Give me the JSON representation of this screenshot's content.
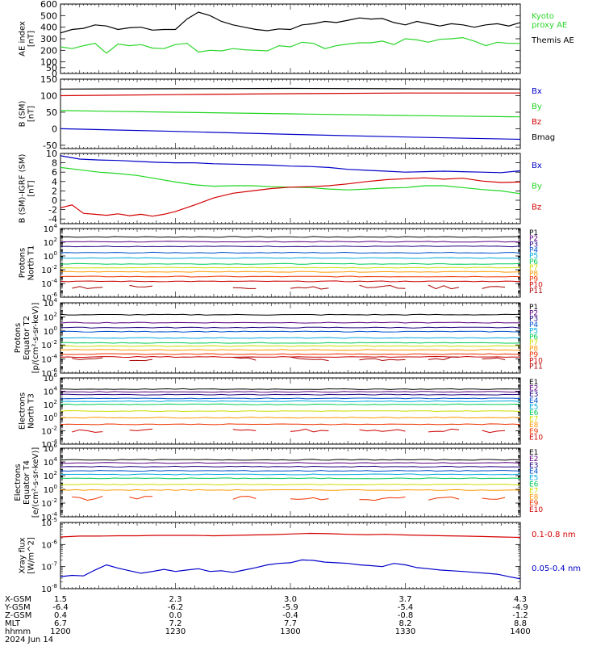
{
  "title": "",
  "colors": {
    "black": "#000000",
    "red": "#d40000",
    "green": "#1fd61f",
    "blue": "#0000c8",
    "ae_kyoto": "#2bd62b",
    "ae_themis": "#000000",
    "xray_long": "#d40000",
    "xray_short": "#0000c8"
  },
  "footer": {
    "rows": [
      {
        "label": "X-GSM",
        "values": [
          "1.5",
          "2.3",
          "3.0",
          "3.7",
          "4.3"
        ]
      },
      {
        "label": "Y-GSM",
        "values": [
          "-6.4",
          "-6.2",
          "-5.9",
          "-5.4",
          "-4.9"
        ]
      },
      {
        "label": "Z-GSM",
        "values": [
          "0.4",
          "0.0",
          "-0.4",
          "-0.8",
          "-1.2"
        ]
      },
      {
        "label": "MLT",
        "values": [
          "6.7",
          "7.2",
          "7.7",
          "8.2",
          "8.8"
        ]
      },
      {
        "label": "hhmm",
        "values": [
          "1200",
          "1230",
          "1300",
          "1330",
          "1400"
        ]
      }
    ],
    "date": "2024 Jun 14"
  },
  "chart_data": [
    {
      "type": "line",
      "ylabel": [
        "AE index",
        "[nT]"
      ],
      "ylim": [
        0,
        600
      ],
      "yticks": [
        "0",
        "50",
        "100",
        "200",
        "300",
        "400",
        "500",
        "600"
      ],
      "ytick_values": [
        0,
        50,
        100,
        200,
        300,
        400,
        500,
        600
      ],
      "legend": [
        {
          "text": [
            "Kyoto",
            "proxy AE"
          ],
          "color": "#2bd62b"
        },
        {
          "text": [
            "Themis AE"
          ],
          "color": "#000000"
        }
      ],
      "series": [
        {
          "name": "Kyoto proxy AE",
          "color": "#2bd62b",
          "x": [
            1200,
            1203,
            1206,
            1209,
            1212,
            1215,
            1218,
            1221,
            1224,
            1227,
            1230,
            1233,
            1236,
            1239,
            1242,
            1245,
            1248,
            1251,
            1254,
            1257,
            1300,
            1303,
            1306,
            1309,
            1312,
            1315,
            1318,
            1321,
            1324,
            1327,
            1330,
            1333,
            1336,
            1339,
            1342,
            1345,
            1348,
            1351,
            1354,
            1357,
            1400
          ],
          "y": [
            230,
            215,
            240,
            260,
            175,
            255,
            240,
            250,
            220,
            215,
            250,
            260,
            185,
            200,
            195,
            215,
            205,
            200,
            195,
            240,
            230,
            270,
            260,
            215,
            240,
            255,
            265,
            265,
            280,
            250,
            300,
            290,
            270,
            295,
            300,
            310,
            280,
            240,
            270,
            260,
            260
          ]
        },
        {
          "name": "Themis AE",
          "color": "#000000",
          "x": [
            1200,
            1203,
            1206,
            1209,
            1212,
            1215,
            1218,
            1221,
            1224,
            1227,
            1230,
            1233,
            1236,
            1239,
            1242,
            1245,
            1248,
            1251,
            1254,
            1257,
            1300,
            1303,
            1306,
            1309,
            1312,
            1315,
            1318,
            1321,
            1324,
            1327,
            1330,
            1333,
            1336,
            1339,
            1342,
            1345,
            1348,
            1351,
            1354,
            1357,
            1400
          ],
          "y": [
            350,
            380,
            390,
            420,
            410,
            380,
            395,
            400,
            375,
            380,
            380,
            470,
            530,
            500,
            450,
            420,
            400,
            380,
            370,
            385,
            380,
            420,
            430,
            450,
            440,
            460,
            480,
            470,
            475,
            440,
            420,
            450,
            430,
            410,
            430,
            420,
            400,
            420,
            430,
            410,
            440
          ]
        }
      ]
    },
    {
      "type": "line",
      "ylabel": [
        "B (SM)",
        "[nT]"
      ],
      "ylim": [
        -60,
        150
      ],
      "yticks": [
        "-50",
        "0",
        "50",
        "100",
        "150"
      ],
      "ytick_values": [
        -50,
        0,
        50,
        100,
        150
      ],
      "legend": [
        {
          "text": [
            "Bx"
          ],
          "color": "#0000c8"
        },
        {
          "text": [
            "By"
          ],
          "color": "#1fd61f"
        },
        {
          "text": [
            "Bz"
          ],
          "color": "#d40000"
        },
        {
          "text": [
            "Bmag"
          ],
          "color": "#000000"
        }
      ],
      "series": [
        {
          "name": "Bmag",
          "color": "#000000",
          "x": [
            1200,
            1230,
            1300,
            1330,
            1400
          ],
          "y": [
            120,
            121,
            122,
            121,
            120
          ]
        },
        {
          "name": "Bz",
          "color": "#d40000",
          "x": [
            1200,
            1230,
            1300,
            1330,
            1400
          ],
          "y": [
            100,
            103,
            106,
            108,
            108
          ]
        },
        {
          "name": "By",
          "color": "#1fd61f",
          "x": [
            1200,
            1230,
            1300,
            1330,
            1400
          ],
          "y": [
            55,
            50,
            45,
            40,
            36
          ]
        },
        {
          "name": "Bx",
          "color": "#0000c8",
          "x": [
            1200,
            1230,
            1300,
            1330,
            1400
          ],
          "y": [
            0,
            -8,
            -17,
            -25,
            -32
          ]
        }
      ]
    },
    {
      "type": "line",
      "ylabel": [
        "B (SM)-IGRF (SM)",
        "[nT]"
      ],
      "ylim": [
        -5,
        10
      ],
      "yticks": [
        "-4",
        "-2",
        "0",
        "2",
        "4",
        "6",
        "8",
        "10"
      ],
      "ytick_values": [
        -4,
        -2,
        0,
        2,
        4,
        6,
        8,
        10
      ],
      "legend": [
        {
          "text": [
            "Bx"
          ],
          "color": "#0000c8"
        },
        {
          "text": [
            "By"
          ],
          "color": "#1fd61f"
        },
        {
          "text": [
            "Bz"
          ],
          "color": "#d40000"
        }
      ],
      "series": [
        {
          "name": "Bx",
          "color": "#0000c8",
          "x": [
            1200,
            1205,
            1210,
            1215,
            1220,
            1225,
            1230,
            1235,
            1240,
            1245,
            1250,
            1255,
            1300,
            1305,
            1310,
            1315,
            1320,
            1325,
            1330,
            1335,
            1340,
            1345,
            1350,
            1355,
            1400
          ],
          "y": [
            9.5,
            8.8,
            8.6,
            8.5,
            8.3,
            8.1,
            8.0,
            8.0,
            7.8,
            7.7,
            7.6,
            7.5,
            7.3,
            7.2,
            7.0,
            6.6,
            6.4,
            6.2,
            6.0,
            6.1,
            6.2,
            6.1,
            6.0,
            5.9,
            6.3
          ]
        },
        {
          "name": "By",
          "color": "#1fd61f",
          "x": [
            1200,
            1205,
            1210,
            1215,
            1220,
            1225,
            1230,
            1235,
            1240,
            1245,
            1250,
            1255,
            1300,
            1305,
            1310,
            1315,
            1320,
            1325,
            1330,
            1335,
            1340,
            1345,
            1350,
            1355,
            1400
          ],
          "y": [
            7.0,
            6.5,
            6.0,
            5.7,
            5.3,
            4.6,
            3.9,
            3.3,
            3.0,
            3.1,
            3.1,
            2.9,
            2.8,
            2.7,
            2.4,
            2.2,
            2.4,
            2.6,
            2.7,
            3.1,
            3.1,
            2.7,
            2.3,
            2.0,
            1.4
          ]
        },
        {
          "name": "Bz",
          "color": "#d40000",
          "x": [
            1200,
            1203,
            1206,
            1209,
            1212,
            1215,
            1218,
            1221,
            1224,
            1227,
            1230,
            1235,
            1240,
            1245,
            1250,
            1255,
            1300,
            1305,
            1310,
            1315,
            1320,
            1325,
            1330,
            1335,
            1340,
            1345,
            1350,
            1355,
            1400
          ],
          "y": [
            -1.6,
            -1.0,
            -2.8,
            -3.0,
            -3.2,
            -2.9,
            -3.3,
            -3.0,
            -3.4,
            -3.0,
            -2.4,
            -1.0,
            0.5,
            1.5,
            2.0,
            2.5,
            2.8,
            2.9,
            3.1,
            3.5,
            4.0,
            4.4,
            4.6,
            4.8,
            4.5,
            4.7,
            4.1,
            3.8,
            3.9
          ]
        }
      ]
    },
    {
      "type": "line",
      "log": true,
      "ylabel": [
        "Protons",
        "North T1"
      ],
      "ylim_exp": [
        -6,
        4
      ],
      "ytick_exps": [
        -6,
        -4,
        -2,
        0,
        2,
        4
      ],
      "channels": [
        {
          "name": "P1",
          "color": "#000000",
          "value": 600
        },
        {
          "name": "P2",
          "color": "#5a0080",
          "value": 120
        },
        {
          "name": "P3",
          "color": "#1e007f",
          "value": 25
        },
        {
          "name": "P4",
          "color": "#0052cc",
          "value": 3
        },
        {
          "name": "P5",
          "color": "#00aadd",
          "value": 0.5
        },
        {
          "name": "P6",
          "color": "#00cc55",
          "value": 0.07
        },
        {
          "name": "P7",
          "color": "#ccdd00",
          "value": 0.02
        },
        {
          "name": "P8",
          "color": "#ff9900",
          "value": 0.005
        },
        {
          "name": "P9",
          "color": "#ee3300",
          "value": 0.001
        },
        {
          "name": "P10",
          "color": "#cc0000",
          "value": 0.0002
        },
        {
          "name": "P11",
          "color": "#aa0000",
          "value": 3e-05,
          "gappy": true
        }
      ]
    },
    {
      "type": "line",
      "log": true,
      "ylabel": [
        "Protons",
        "Equator T2",
        "[p/(cm²-s-sr-keV)]"
      ],
      "ylim_exp": [
        -6,
        4
      ],
      "ytick_exps": [
        -6,
        -4,
        -2,
        0,
        2,
        4
      ],
      "channels": [
        {
          "name": "P1",
          "color": "#000000",
          "value": 200
        },
        {
          "name": "P2",
          "color": "#5a0080",
          "value": 15
        },
        {
          "name": "P3",
          "color": "#1e007f",
          "value": 3
        },
        {
          "name": "P4",
          "color": "#0052cc",
          "value": 0.8
        },
        {
          "name": "P5",
          "color": "#00aadd",
          "value": 0.1
        },
        {
          "name": "P6",
          "color": "#00cc55",
          "value": 0.02
        },
        {
          "name": "P7",
          "color": "#ccdd00",
          "value": 0.007
        },
        {
          "name": "P8",
          "color": "#ff9900",
          "value": 0.002
        },
        {
          "name": "P9",
          "color": "#ee3300",
          "value": 0.0005
        },
        {
          "name": "P10",
          "color": "#cc0000",
          "value": 0.0002
        },
        {
          "name": "P11",
          "color": "#aa0000",
          "value": 0.0001,
          "gappy": true
        }
      ]
    },
    {
      "type": "line",
      "log": true,
      "ylabel": [
        "Electrons",
        "North T3"
      ],
      "ylim_exp": [
        -4,
        6
      ],
      "ytick_exps": [
        -4,
        -2,
        0,
        2,
        4,
        6
      ],
      "channels": [
        {
          "name": "E1",
          "color": "#000000",
          "value": 20000
        },
        {
          "name": "E2",
          "color": "#5a0080",
          "value": 8000
        },
        {
          "name": "E3",
          "color": "#1e007f",
          "value": 3000
        },
        {
          "name": "E4",
          "color": "#0052cc",
          "value": 800
        },
        {
          "name": "E5",
          "color": "#00aadd",
          "value": 300
        },
        {
          "name": "E6",
          "color": "#00cc55",
          "value": 100
        },
        {
          "name": "E7",
          "color": "#ccdd00",
          "value": 10
        },
        {
          "name": "E8",
          "color": "#ff9900",
          "value": 1
        },
        {
          "name": "E9",
          "color": "#ee3300",
          "value": 0.1
        },
        {
          "name": "E10",
          "color": "#cc0000",
          "value": 0.01,
          "gappy": true
        }
      ]
    },
    {
      "type": "line",
      "log": true,
      "ylabel": [
        "Electrons",
        "Equator T4",
        "[e/(cm²-s-sr-keV)]"
      ],
      "ylim_exp": [
        -4,
        6
      ],
      "ytick_exps": [
        -4,
        -2,
        0,
        2,
        4,
        6
      ],
      "channels": [
        {
          "name": "E1",
          "color": "#000000",
          "value": 20000
        },
        {
          "name": "E2",
          "color": "#5a0080",
          "value": 7000
        },
        {
          "name": "E3",
          "color": "#1e007f",
          "value": 2000
        },
        {
          "name": "E4",
          "color": "#0052cc",
          "value": 500
        },
        {
          "name": "E5",
          "color": "#00aadd",
          "value": 150
        },
        {
          "name": "E6",
          "color": "#00cc55",
          "value": 40
        },
        {
          "name": "E7",
          "color": "#ccdd00",
          "value": 5
        },
        {
          "name": "E8",
          "color": "#ff9900",
          "value": 0.8
        },
        {
          "name": "E9",
          "color": "#ee3300",
          "value": 0.05,
          "gappy": true
        },
        {
          "name": "E10",
          "color": "#cc0000",
          "value": 0.01,
          "hidden": true
        }
      ]
    },
    {
      "type": "line",
      "log": true,
      "ylabel": [
        "Xray flux",
        "[W/m^2]"
      ],
      "ylim_exp": [
        -8,
        -5
      ],
      "ytick_exps": [
        -8,
        -7,
        -6,
        -5
      ],
      "legend": [
        {
          "text": [
            "0.1-0.8 nm"
          ],
          "color": "#d40000"
        },
        {
          "text": [
            "0.05-0.4 nm"
          ],
          "color": "#0000c8"
        }
      ],
      "series": [
        {
          "name": "0.1-0.8 nm",
          "color": "#d40000",
          "x": [
            1200,
            1205,
            1210,
            1215,
            1220,
            1225,
            1230,
            1235,
            1240,
            1245,
            1250,
            1255,
            1300,
            1305,
            1310,
            1315,
            1320,
            1325,
            1330,
            1335,
            1340,
            1345,
            1350,
            1355,
            1400
          ],
          "y": [
            2.2e-06,
            2.4e-06,
            2.4e-06,
            2.5e-06,
            2.5e-06,
            2.6e-06,
            2.6e-06,
            2.6e-06,
            2.5e-06,
            2.6e-06,
            2.7e-06,
            2.8e-06,
            3e-06,
            3.2e-06,
            3.1e-06,
            2.9e-06,
            2.8e-06,
            2.9e-06,
            2.7e-06,
            2.6e-06,
            2.5e-06,
            2.4e-06,
            2.3e-06,
            2.2e-06,
            2.1e-06
          ]
        },
        {
          "name": "0.05-0.4 nm",
          "color": "#0000c8",
          "x": [
            1200,
            1203,
            1206,
            1209,
            1212,
            1215,
            1218,
            1221,
            1224,
            1227,
            1230,
            1233,
            1236,
            1239,
            1242,
            1245,
            1248,
            1251,
            1254,
            1257,
            1300,
            1303,
            1306,
            1309,
            1312,
            1315,
            1318,
            1321,
            1324,
            1327,
            1330,
            1333,
            1336,
            1339,
            1342,
            1345,
            1348,
            1351,
            1354,
            1357,
            1400
          ],
          "y": [
            3.5e-08,
            4e-08,
            3.8e-08,
            7e-08,
            1.2e-07,
            8.5e-08,
            6.5e-08,
            5e-08,
            6e-08,
            7.5e-08,
            6e-08,
            7e-08,
            8e-08,
            6e-08,
            6.5e-08,
            5.5e-08,
            7e-08,
            9e-08,
            1.2e-07,
            1.4e-07,
            1.5e-07,
            2e-07,
            1.9e-07,
            1.6e-07,
            1.5e-07,
            1.4e-07,
            1.2e-07,
            1.1e-07,
            1e-07,
            1.4e-07,
            1.2e-07,
            9e-08,
            8e-08,
            7e-08,
            6.5e-08,
            6e-08,
            5.5e-08,
            5e-08,
            4.5e-08,
            3.5e-08,
            2.8e-08
          ]
        }
      ]
    }
  ]
}
